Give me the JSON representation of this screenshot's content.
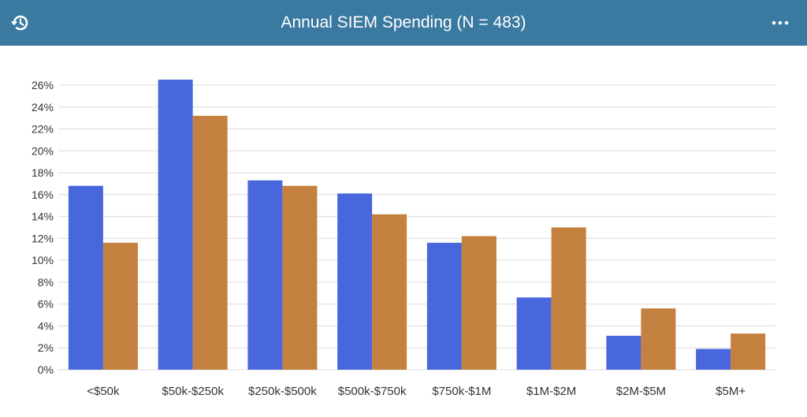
{
  "header": {
    "title": "Annual SIEM Spending (N = 483)",
    "history_icon": "history-icon",
    "menu_icon": "more-horizontal-icon"
  },
  "colors": {
    "header_bg": "#3a79a0",
    "series_a": "#4867dc",
    "series_b": "#c4803e"
  },
  "chart_data": {
    "type": "bar",
    "title": "Annual SIEM Spending (N = 483)",
    "xlabel": "",
    "ylabel": "",
    "ylim": [
      0,
      26
    ],
    "yticks": [
      0,
      2,
      4,
      6,
      8,
      10,
      12,
      14,
      16,
      18,
      20,
      22,
      24,
      26
    ],
    "ytick_format": "percent",
    "grid": true,
    "legend": "none",
    "categories": [
      "<$50k",
      "$50k-$250k",
      "$250k-$500k",
      "$500k-$750k",
      "$750k-$1M",
      "$1M-$2M",
      "$2M-$5M",
      "$5M+"
    ],
    "series": [
      {
        "color": "#4867dc",
        "values": [
          16.8,
          26.5,
          17.3,
          16.1,
          11.6,
          6.6,
          3.1,
          1.9
        ]
      },
      {
        "color": "#c4803e",
        "values": [
          11.6,
          23.2,
          16.8,
          14.2,
          12.2,
          13.0,
          5.6,
          3.3
        ]
      }
    ]
  }
}
